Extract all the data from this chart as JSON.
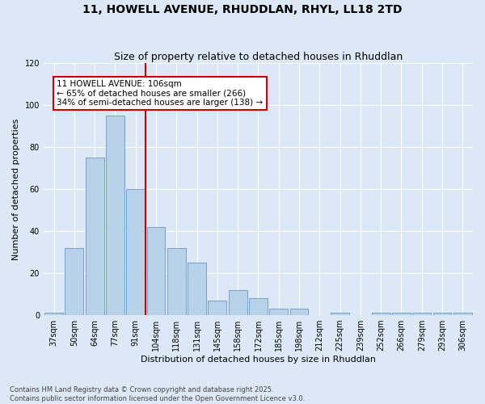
{
  "title": "11, HOWELL AVENUE, RHUDDLAN, RHYL, LL18 2TD",
  "subtitle": "Size of property relative to detached houses in Rhuddlan",
  "xlabel": "Distribution of detached houses by size in Rhuddlan",
  "ylabel": "Number of detached properties",
  "categories": [
    "37sqm",
    "50sqm",
    "64sqm",
    "77sqm",
    "91sqm",
    "104sqm",
    "118sqm",
    "131sqm",
    "145sqm",
    "158sqm",
    "172sqm",
    "185sqm",
    "198sqm",
    "212sqm",
    "225sqm",
    "239sqm",
    "252sqm",
    "266sqm",
    "279sqm",
    "293sqm",
    "306sqm"
  ],
  "values": [
    1,
    32,
    75,
    95,
    60,
    42,
    32,
    25,
    7,
    12,
    8,
    3,
    3,
    0,
    1,
    0,
    1,
    1,
    1,
    1,
    1
  ],
  "bar_color": "#b8d0e8",
  "bar_edge_color": "#6699cc",
  "background_color": "#dce8f5",
  "grid_color": "#ffffff",
  "vline_x_index": 5,
  "vline_color": "#cc0000",
  "annotation_text": "11 HOWELL AVENUE: 106sqm\n← 65% of detached houses are smaller (266)\n34% of semi-detached houses are larger (138) →",
  "annotation_box_color": "#cc0000",
  "ylim": [
    0,
    120
  ],
  "yticks": [
    0,
    20,
    40,
    60,
    80,
    100,
    120
  ],
  "footer": "Contains HM Land Registry data © Crown copyright and database right 2025.\nContains public sector information licensed under the Open Government Licence v3.0.",
  "title_fontsize": 10,
  "subtitle_fontsize": 9,
  "tick_fontsize": 7,
  "ylabel_fontsize": 8,
  "xlabel_fontsize": 8,
  "annotation_fontsize": 7.5,
  "footer_fontsize": 6
}
